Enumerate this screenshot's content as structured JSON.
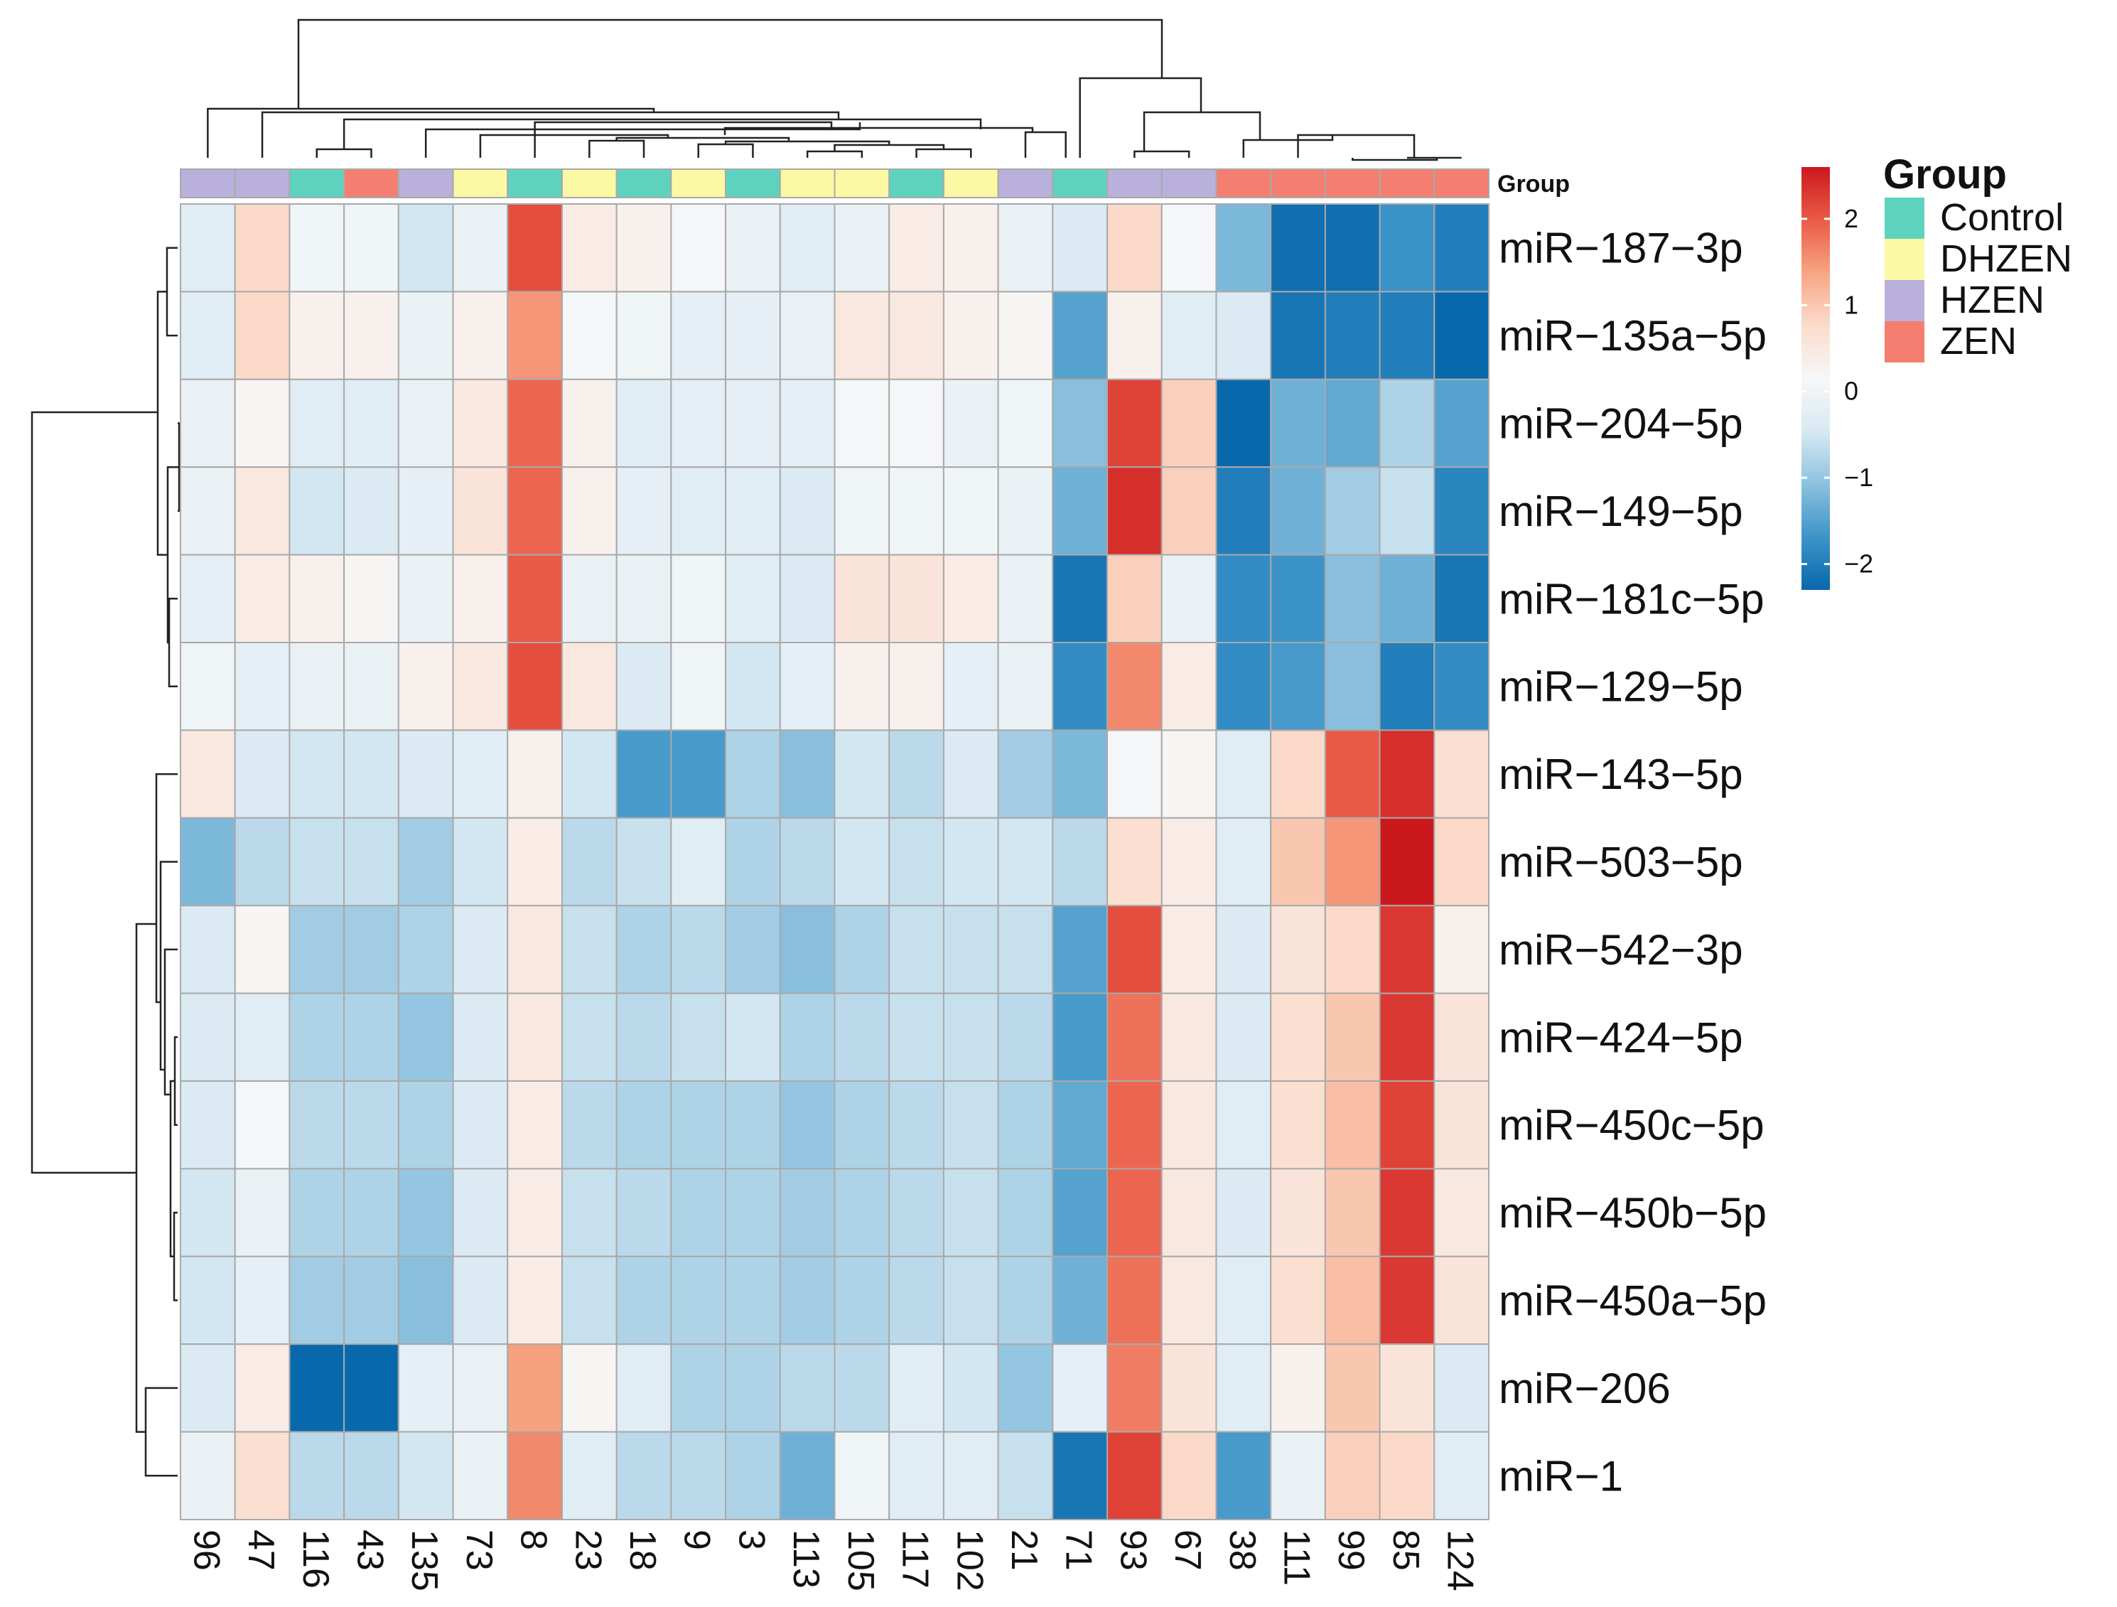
{
  "chart_data": {
    "type": "heatmap",
    "title": "",
    "annotation_label": "Group",
    "legend": {
      "title": "Group",
      "items": [
        {
          "name": "Control",
          "color": "#5dd3bf"
        },
        {
          "name": "DHZEN",
          "color": "#fcf9a4"
        },
        {
          "name": "HZEN",
          "color": "#b9b1db"
        },
        {
          "name": "ZEN",
          "color": "#f47f70"
        }
      ]
    },
    "colorbar": {
      "min": -2.3,
      "max": 2.6,
      "ticks": [
        2,
        1,
        0,
        -1,
        -2
      ],
      "tick_labels": [
        "2",
        "1",
        "0",
        "−1",
        "−2"
      ],
      "palette": [
        "#0868ac",
        "#3d94c8",
        "#8cc1de",
        "#d8e9f3",
        "#f7f7f7",
        "#fbdccd",
        "#f7a583",
        "#ea5a47",
        "#cb181d"
      ]
    },
    "columns": [
      "96",
      "47",
      "116",
      "43",
      "135",
      "73",
      "8",
      "23",
      "18",
      "9",
      "3",
      "113",
      "105",
      "117",
      "102",
      "21",
      "71",
      "93",
      "67",
      "38",
      "111",
      "99",
      "85",
      "124"
    ],
    "column_groups": [
      "HZEN",
      "HZEN",
      "Control",
      "ZEN",
      "HZEN",
      "DHZEN",
      "Control",
      "DHZEN",
      "Control",
      "DHZEN",
      "Control",
      "DHZEN",
      "DHZEN",
      "Control",
      "DHZEN",
      "HZEN",
      "Control",
      "HZEN",
      "HZEN",
      "ZEN",
      "ZEN",
      "ZEN",
      "ZEN",
      "ZEN"
    ],
    "rows": [
      "miR−187−3p",
      "miR−135a−5p",
      "miR−204−5p",
      "miR−149−5p",
      "miR−181c−5p",
      "miR−129−5p",
      "miR−143−5p",
      "miR−503−5p",
      "miR−542−3p",
      "miR−424−5p",
      "miR−450c−5p",
      "miR−450b−5p",
      "miR−450a−5p",
      "miR−206",
      "miR−1"
    ],
    "values": [
      [
        -0.3,
        0.8,
        0.0,
        0.0,
        -0.5,
        -0.1,
        2.1,
        0.4,
        0.3,
        0.1,
        -0.1,
        -0.3,
        -0.1,
        0.4,
        0.3,
        -0.1,
        -0.4,
        0.8,
        0.1,
        -1.2,
        -2.2,
        -2.2,
        -1.7,
        -2.0
      ],
      [
        -0.3,
        0.8,
        0.3,
        0.3,
        -0.1,
        0.3,
        1.5,
        0.1,
        0.0,
        -0.2,
        -0.2,
        -0.1,
        0.5,
        0.5,
        0.3,
        0.2,
        -1.5,
        0.3,
        -0.3,
        -0.4,
        -2.1,
        -2.0,
        -2.0,
        -2.3
      ],
      [
        -0.1,
        0.2,
        -0.3,
        -0.3,
        -0.1,
        0.5,
        1.9,
        0.3,
        -0.3,
        -0.2,
        -0.2,
        -0.2,
        0.1,
        0.1,
        -0.1,
        0.0,
        -1.1,
        2.2,
        0.9,
        -2.3,
        -1.3,
        -1.4,
        -0.8,
        -1.5
      ],
      [
        -0.1,
        0.5,
        -0.5,
        -0.4,
        -0.2,
        0.6,
        1.9,
        0.3,
        -0.2,
        -0.3,
        -0.3,
        -0.4,
        0.0,
        0.0,
        0.0,
        -0.1,
        -1.3,
        2.4,
        0.9,
        -2.0,
        -1.3,
        -0.9,
        -0.6,
        -1.9
      ],
      [
        -0.2,
        0.4,
        0.3,
        0.2,
        -0.1,
        0.3,
        2.0,
        -0.1,
        -0.1,
        0.0,
        -0.3,
        -0.4,
        0.6,
        0.6,
        0.4,
        -0.1,
        -2.1,
        0.9,
        -0.1,
        -1.8,
        -1.7,
        -1.1,
        -1.3,
        -2.1
      ],
      [
        0.0,
        -0.2,
        -0.1,
        -0.1,
        0.3,
        0.5,
        2.1,
        0.5,
        -0.4,
        0.0,
        -0.5,
        -0.2,
        0.3,
        0.3,
        -0.2,
        -0.1,
        -1.8,
        1.6,
        0.4,
        -1.8,
        -1.6,
        -1.1,
        -2.0,
        -1.8
      ],
      [
        0.5,
        -0.4,
        -0.5,
        -0.5,
        -0.4,
        -0.3,
        0.3,
        -0.5,
        -1.6,
        -1.6,
        -0.8,
        -1.1,
        -0.5,
        -0.7,
        -0.4,
        -0.9,
        -1.2,
        0.1,
        0.2,
        -0.3,
        0.8,
        2.0,
        2.4,
        0.7
      ],
      [
        -1.2,
        -0.7,
        -0.6,
        -0.6,
        -0.9,
        -0.5,
        0.4,
        -0.7,
        -0.6,
        -0.3,
        -0.8,
        -0.7,
        -0.5,
        -0.6,
        -0.5,
        -0.5,
        -0.7,
        0.7,
        0.4,
        -0.3,
        1.0,
        1.5,
        2.6,
        0.8
      ],
      [
        -0.4,
        0.2,
        -0.9,
        -0.9,
        -0.8,
        -0.4,
        0.5,
        -0.6,
        -0.8,
        -0.7,
        -0.9,
        -1.1,
        -0.8,
        -0.6,
        -0.6,
        -0.6,
        -1.5,
        2.1,
        0.4,
        -0.4,
        0.6,
        0.8,
        2.3,
        0.3
      ],
      [
        -0.4,
        -0.3,
        -0.8,
        -0.8,
        -1.0,
        -0.4,
        0.5,
        -0.6,
        -0.7,
        -0.6,
        -0.5,
        -0.8,
        -0.7,
        -0.6,
        -0.6,
        -0.7,
        -1.6,
        1.8,
        0.5,
        -0.4,
        0.7,
        1.0,
        2.3,
        0.6
      ],
      [
        -0.4,
        0.1,
        -0.7,
        -0.7,
        -0.8,
        -0.4,
        0.4,
        -0.7,
        -0.8,
        -0.8,
        -0.8,
        -1.0,
        -0.8,
        -0.7,
        -0.6,
        -0.8,
        -1.4,
        1.9,
        0.5,
        -0.3,
        0.7,
        1.1,
        2.2,
        0.6
      ],
      [
        -0.5,
        -0.1,
        -0.8,
        -0.8,
        -1.0,
        -0.4,
        0.4,
        -0.6,
        -0.7,
        -0.8,
        -0.8,
        -0.9,
        -0.8,
        -0.7,
        -0.6,
        -0.8,
        -1.5,
        1.9,
        0.5,
        -0.4,
        0.6,
        1.0,
        2.3,
        0.5
      ],
      [
        -0.5,
        -0.2,
        -0.9,
        -0.9,
        -1.1,
        -0.4,
        0.4,
        -0.6,
        -0.8,
        -0.8,
        -0.8,
        -0.9,
        -0.8,
        -0.7,
        -0.6,
        -0.8,
        -1.3,
        1.8,
        0.5,
        -0.3,
        0.7,
        1.1,
        2.3,
        0.6
      ],
      [
        -0.4,
        0.4,
        -2.3,
        -2.3,
        -0.2,
        -0.1,
        1.4,
        0.2,
        -0.3,
        -0.8,
        -0.8,
        -0.7,
        -0.7,
        -0.3,
        -0.5,
        -1.0,
        -0.2,
        1.7,
        0.6,
        -0.3,
        0.3,
        1.0,
        0.6,
        -0.4
      ],
      [
        -0.1,
        0.7,
        -0.7,
        -0.7,
        -0.5,
        -0.1,
        1.6,
        -0.3,
        -0.7,
        -0.7,
        -0.8,
        -1.3,
        0.0,
        -0.3,
        -0.3,
        -0.6,
        -2.1,
        2.2,
        0.8,
        -1.6,
        -0.1,
        0.9,
        0.8,
        -0.3
      ]
    ]
  }
}
